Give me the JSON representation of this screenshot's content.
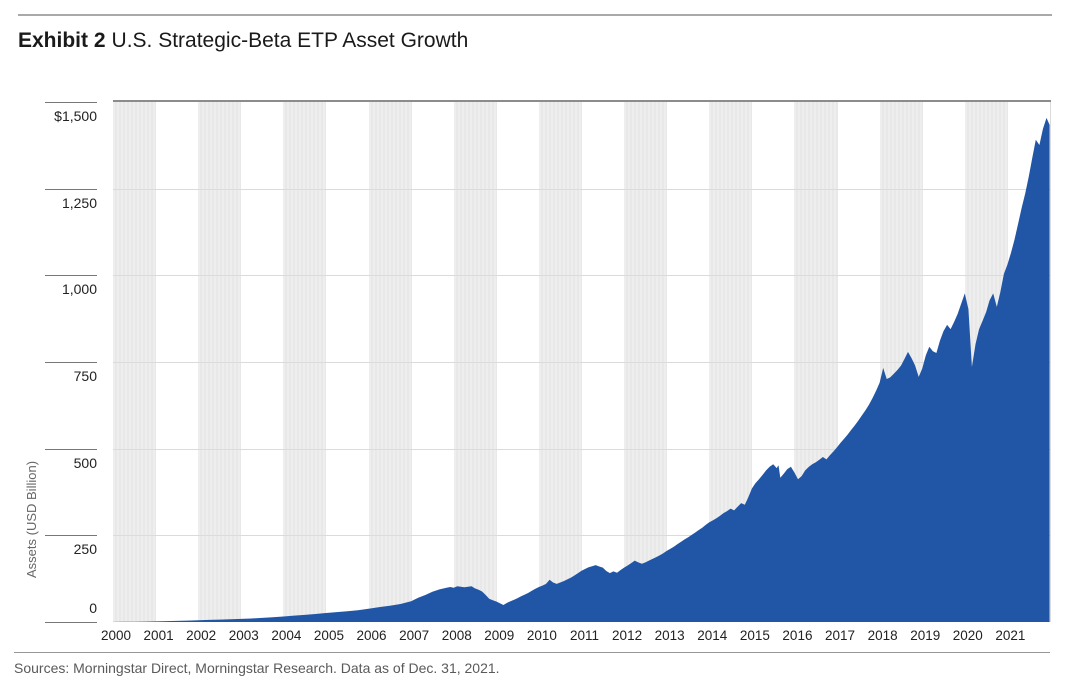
{
  "title": {
    "exhibit": "Exhibit 2",
    "text": "U.S. Strategic-Beta ETP Asset Growth"
  },
  "footer": "Sources: Morningstar Direct, Morningstar Research. Data as of Dec. 31, 2021.",
  "colors": {
    "area": "#2156A6",
    "band_light": "#EEEEEE",
    "band_dark": "#E8E8E8",
    "gridline": "#DBDBDB",
    "plot_top_border": "#8C8C8C",
    "tick_line": "#777777",
    "axis_text": "#222222",
    "muted_text": "#5A5A5A"
  },
  "chart_data": {
    "type": "area",
    "title": "U.S. Strategic-Beta ETP Asset Growth",
    "ylabel": "Assets (USD Billion)",
    "xlabel": "",
    "ylim": [
      0,
      1500
    ],
    "x_range": [
      2000,
      2022
    ],
    "grid": "horizontal",
    "bands_start_shaded": true,
    "y_ticks": [
      {
        "v": 1500,
        "label": "$1,500"
      },
      {
        "v": 1250,
        "label": "1,250"
      },
      {
        "v": 1000,
        "label": "1,000"
      },
      {
        "v": 750,
        "label": "750"
      },
      {
        "v": 500,
        "label": "500"
      },
      {
        "v": 250,
        "label": "250"
      },
      {
        "v": 0,
        "label": "0"
      }
    ],
    "x_years": [
      "2000",
      "2001",
      "2002",
      "2003",
      "2004",
      "2005",
      "2006",
      "2007",
      "2008",
      "2009",
      "2010",
      "2011",
      "2012",
      "2013",
      "2014",
      "2015",
      "2016",
      "2017",
      "2018",
      "2019",
      "2020",
      "2021"
    ],
    "series": [
      {
        "name": "U.S. strategic-beta ETP assets (USD billion)",
        "points": [
          [
            2000.0,
            0.3
          ],
          [
            2000.25,
            0.5
          ],
          [
            2000.5,
            0.8
          ],
          [
            2000.75,
            1.1
          ],
          [
            2001.0,
            1.8
          ],
          [
            2001.25,
            2.5
          ],
          [
            2001.5,
            3.2
          ],
          [
            2001.75,
            4.0
          ],
          [
            2002.0,
            5.2
          ],
          [
            2002.25,
            6.2
          ],
          [
            2002.5,
            7.0
          ],
          [
            2002.75,
            7.8
          ],
          [
            2003.0,
            8.8
          ],
          [
            2003.25,
            10
          ],
          [
            2003.5,
            11.8
          ],
          [
            2003.75,
            13.8
          ],
          [
            2004.0,
            16
          ],
          [
            2004.25,
            18.5
          ],
          [
            2004.5,
            20.5
          ],
          [
            2004.75,
            23
          ],
          [
            2005.0,
            26
          ],
          [
            2005.25,
            28.5
          ],
          [
            2005.5,
            31
          ],
          [
            2005.75,
            34
          ],
          [
            2006.0,
            38
          ],
          [
            2006.25,
            43
          ],
          [
            2006.5,
            47
          ],
          [
            2006.75,
            52
          ],
          [
            2007.0,
            60
          ],
          [
            2007.167,
            70
          ],
          [
            2007.333,
            78
          ],
          [
            2007.5,
            87
          ],
          [
            2007.667,
            94
          ],
          [
            2007.833,
            99
          ],
          [
            2007.917,
            101
          ],
          [
            2008.0,
            99
          ],
          [
            2008.083,
            103
          ],
          [
            2008.25,
            100
          ],
          [
            2008.417,
            103
          ],
          [
            2008.5,
            97
          ],
          [
            2008.583,
            93
          ],
          [
            2008.667,
            88
          ],
          [
            2008.75,
            78
          ],
          [
            2008.833,
            67
          ],
          [
            2008.917,
            63
          ],
          [
            2009.0,
            59
          ],
          [
            2009.083,
            54
          ],
          [
            2009.167,
            49
          ],
          [
            2009.25,
            55
          ],
          [
            2009.333,
            60
          ],
          [
            2009.417,
            64
          ],
          [
            2009.5,
            69
          ],
          [
            2009.583,
            74
          ],
          [
            2009.667,
            79
          ],
          [
            2009.75,
            84
          ],
          [
            2009.833,
            90
          ],
          [
            2009.917,
            96
          ],
          [
            2010.0,
            101
          ],
          [
            2010.083,
            105
          ],
          [
            2010.167,
            110
          ],
          [
            2010.25,
            122
          ],
          [
            2010.333,
            114
          ],
          [
            2010.417,
            110
          ],
          [
            2010.5,
            114
          ],
          [
            2010.583,
            118
          ],
          [
            2010.667,
            123
          ],
          [
            2010.75,
            128
          ],
          [
            2010.833,
            134
          ],
          [
            2010.917,
            141
          ],
          [
            2011.0,
            148
          ],
          [
            2011.083,
            153
          ],
          [
            2011.167,
            158
          ],
          [
            2011.25,
            161
          ],
          [
            2011.333,
            164
          ],
          [
            2011.417,
            160
          ],
          [
            2011.5,
            157
          ],
          [
            2011.583,
            147
          ],
          [
            2011.667,
            141
          ],
          [
            2011.75,
            146
          ],
          [
            2011.833,
            142
          ],
          [
            2011.917,
            150
          ],
          [
            2012.0,
            157
          ],
          [
            2012.083,
            163
          ],
          [
            2012.167,
            170
          ],
          [
            2012.25,
            177
          ],
          [
            2012.333,
            172
          ],
          [
            2012.417,
            168
          ],
          [
            2012.5,
            172
          ],
          [
            2012.583,
            177
          ],
          [
            2012.667,
            182
          ],
          [
            2012.75,
            187
          ],
          [
            2012.833,
            192
          ],
          [
            2012.917,
            198
          ],
          [
            2013.0,
            205
          ],
          [
            2013.083,
            211
          ],
          [
            2013.167,
            217
          ],
          [
            2013.25,
            224
          ],
          [
            2013.333,
            231
          ],
          [
            2013.417,
            238
          ],
          [
            2013.5,
            244
          ],
          [
            2013.583,
            251
          ],
          [
            2013.667,
            258
          ],
          [
            2013.75,
            265
          ],
          [
            2013.833,
            272
          ],
          [
            2013.917,
            280
          ],
          [
            2014.0,
            288
          ],
          [
            2014.083,
            293
          ],
          [
            2014.167,
            299
          ],
          [
            2014.25,
            306
          ],
          [
            2014.333,
            314
          ],
          [
            2014.417,
            320
          ],
          [
            2014.5,
            327
          ],
          [
            2014.583,
            322
          ],
          [
            2014.667,
            333
          ],
          [
            2014.75,
            343
          ],
          [
            2014.833,
            338
          ],
          [
            2014.917,
            360
          ],
          [
            2015.0,
            385
          ],
          [
            2015.083,
            400
          ],
          [
            2015.167,
            412
          ],
          [
            2015.25,
            424
          ],
          [
            2015.333,
            437
          ],
          [
            2015.417,
            448
          ],
          [
            2015.5,
            455
          ],
          [
            2015.583,
            444
          ],
          [
            2015.625,
            452
          ],
          [
            2015.667,
            416
          ],
          [
            2015.75,
            428
          ],
          [
            2015.833,
            441
          ],
          [
            2015.917,
            448
          ],
          [
            2016.0,
            431
          ],
          [
            2016.083,
            412
          ],
          [
            2016.167,
            421
          ],
          [
            2016.25,
            437
          ],
          [
            2016.333,
            447
          ],
          [
            2016.417,
            455
          ],
          [
            2016.5,
            461
          ],
          [
            2016.583,
            468
          ],
          [
            2016.667,
            476
          ],
          [
            2016.75,
            469
          ],
          [
            2016.833,
            481
          ],
          [
            2016.917,
            492
          ],
          [
            2017.0,
            504
          ],
          [
            2017.083,
            517
          ],
          [
            2017.167,
            529
          ],
          [
            2017.25,
            541
          ],
          [
            2017.333,
            554
          ],
          [
            2017.417,
            567
          ],
          [
            2017.5,
            581
          ],
          [
            2017.583,
            596
          ],
          [
            2017.667,
            611
          ],
          [
            2017.75,
            627
          ],
          [
            2017.833,
            646
          ],
          [
            2017.917,
            667
          ],
          [
            2018.0,
            690
          ],
          [
            2018.083,
            733
          ],
          [
            2018.167,
            701
          ],
          [
            2018.25,
            706
          ],
          [
            2018.333,
            716
          ],
          [
            2018.417,
            727
          ],
          [
            2018.5,
            739
          ],
          [
            2018.583,
            759
          ],
          [
            2018.667,
            779
          ],
          [
            2018.75,
            761
          ],
          [
            2018.833,
            740
          ],
          [
            2018.917,
            707
          ],
          [
            2019.0,
            731
          ],
          [
            2019.083,
            769
          ],
          [
            2019.167,
            794
          ],
          [
            2019.25,
            781
          ],
          [
            2019.333,
            776
          ],
          [
            2019.417,
            812
          ],
          [
            2019.5,
            839
          ],
          [
            2019.583,
            857
          ],
          [
            2019.667,
            845
          ],
          [
            2019.75,
            866
          ],
          [
            2019.833,
            889
          ],
          [
            2019.917,
            919
          ],
          [
            2020.0,
            948
          ],
          [
            2020.083,
            903
          ],
          [
            2020.167,
            736
          ],
          [
            2020.25,
            801
          ],
          [
            2020.333,
            844
          ],
          [
            2020.417,
            869
          ],
          [
            2020.5,
            894
          ],
          [
            2020.583,
            928
          ],
          [
            2020.667,
            948
          ],
          [
            2020.75,
            909
          ],
          [
            2020.833,
            951
          ],
          [
            2020.917,
            1004
          ],
          [
            2021.0,
            1031
          ],
          [
            2021.083,
            1064
          ],
          [
            2021.167,
            1103
          ],
          [
            2021.25,
            1149
          ],
          [
            2021.333,
            1194
          ],
          [
            2021.417,
            1236
          ],
          [
            2021.5,
            1284
          ],
          [
            2021.583,
            1338
          ],
          [
            2021.667,
            1391
          ],
          [
            2021.75,
            1376
          ],
          [
            2021.833,
            1422
          ],
          [
            2021.917,
            1454
          ],
          [
            2021.99,
            1434
          ]
        ]
      }
    ]
  }
}
